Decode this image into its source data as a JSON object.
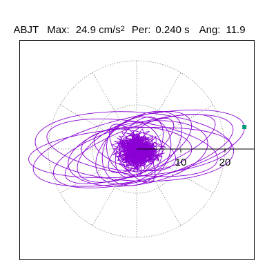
{
  "header": {
    "station": "ABJT",
    "max_label": "Max:",
    "max_value": "24.9 cm/s",
    "max_exp": "2",
    "per_label": "Per:",
    "per_value": "0.240 s",
    "ang_label": "Ang:",
    "ang_value": "11.9"
  },
  "colors": {
    "trace": "#8a00d4",
    "marker": "#009b77",
    "grid": "#888888",
    "axis": "#000000"
  },
  "chart_data": {
    "type": "scatter",
    "title": "ABJT  Max: 24.9 cm/s2  Per: 0.240 s  Ang: 11.9",
    "description": "Horizontal particle-motion (hodogram) plot of acceleration",
    "x_ticks": [
      10,
      20
    ],
    "radial_rings": [
      10,
      20
    ],
    "radial_spokes_deg": [
      0,
      30,
      60,
      90,
      120,
      150,
      180,
      210,
      240,
      270,
      300,
      330
    ],
    "xlim": [
      -26,
      27
    ],
    "ylim": [
      -26,
      27
    ],
    "max_value": 24.9,
    "max_unit": "cm/s2",
    "period_s": 0.24,
    "angle_deg": 11.9,
    "peak_marker": {
      "x": 24.4,
      "y": 5.0
    },
    "orbits": [
      {
        "rx": 24.4,
        "ry": 7.2,
        "tilt": 11.9,
        "cx": 0.5,
        "cy": 0.2
      },
      {
        "rx": 23.0,
        "ry": 5.5,
        "tilt": 4.0,
        "cx": -1.5,
        "cy": -0.8
      },
      {
        "rx": 22.5,
        "ry": 7.8,
        "tilt": -3.0,
        "cx": -0.5,
        "cy": 0.6
      },
      {
        "rx": 21.0,
        "ry": 6.5,
        "tilt": 15.0,
        "cx": 1.5,
        "cy": -0.5
      },
      {
        "rx": 19.5,
        "ry": 6.0,
        "tilt": -8.0,
        "cx": -1.0,
        "cy": 0.3
      },
      {
        "rx": 18.0,
        "ry": 5.2,
        "tilt": 20.0,
        "cx": 0.8,
        "cy": 0.0
      },
      {
        "rx": 16.0,
        "ry": 7.0,
        "tilt": 10.0,
        "cx": 0.3,
        "cy": -1.0
      },
      {
        "rx": 14.0,
        "ry": 6.0,
        "tilt": 25.0,
        "cx": -0.5,
        "cy": 0.5
      },
      {
        "rx": 12.5,
        "ry": 5.0,
        "tilt": 0.0,
        "cx": 0.0,
        "cy": 0.0
      },
      {
        "rx": 11.0,
        "ry": 6.5,
        "tilt": 35.0,
        "cx": 0.5,
        "cy": 0.3
      },
      {
        "rx": 9.5,
        "ry": 4.2,
        "tilt": -15.0,
        "cx": -0.4,
        "cy": -0.2
      },
      {
        "rx": 8.5,
        "ry": 7.0,
        "tilt": 45.0,
        "cx": 0.0,
        "cy": -0.5
      },
      {
        "rx": 7.5,
        "ry": 4.5,
        "tilt": 60.0,
        "cx": 0.6,
        "cy": 0.4
      },
      {
        "rx": 6.5,
        "ry": 6.0,
        "tilt": -40.0,
        "cx": -0.5,
        "cy": 0.0
      },
      {
        "rx": 9.0,
        "ry": 3.5,
        "tilt": 38.0,
        "cx": 1.0,
        "cy": 0.8
      },
      {
        "rx": 7.8,
        "ry": 3.2,
        "tilt": -55.0,
        "cx": -1.0,
        "cy": -1.0
      }
    ],
    "tangle": {
      "count": 900,
      "radius": 9.0,
      "seed": 7
    }
  }
}
